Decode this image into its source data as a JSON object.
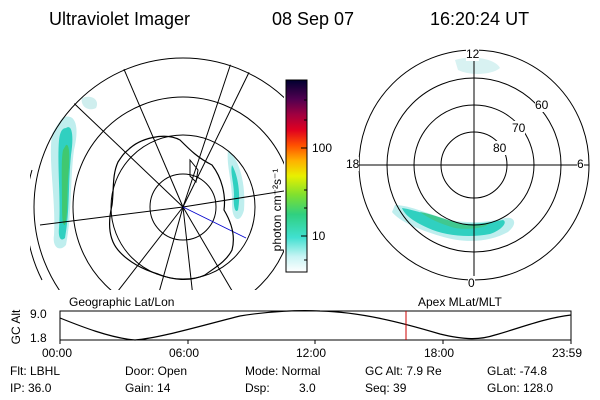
{
  "header": {
    "title": "Ultraviolet Imager",
    "date": "08 Sep 07",
    "time": "16:20:24 UT"
  },
  "colorbar": {
    "unit_label": "photon cm⁻²s⁻¹",
    "ticks": [
      "100",
      "10"
    ]
  },
  "left_panel": {
    "caption": "Geographic Lat/Lon"
  },
  "right_panel": {
    "caption": "Apex MLat/MLT",
    "mlt_labels": [
      "12",
      "18",
      "6",
      "0"
    ],
    "mlat_labels": [
      "60",
      "70",
      "80"
    ]
  },
  "altitude_plot": {
    "ylabel": "GC Alt",
    "ymax_label": "9.0",
    "ymin_label": "1.8",
    "time_ticks": [
      "00:00",
      "06:00",
      "12:00",
      "18:00",
      "23:59"
    ],
    "current_marker_color": "#cc0000"
  },
  "info": {
    "flt": "Flt: LBHL",
    "ip": "IP: 36.0",
    "door": "Door: Open",
    "gain": "Gain: 14",
    "mode": "Mode: Normal",
    "dsp_label": "Dsp:",
    "dsp_value": "3.0",
    "gc_alt": "GC Alt: 7.9 Re",
    "seq": "Seq: 39",
    "glat": "GLat: -74.8",
    "glon": "GLon: 128.0"
  }
}
